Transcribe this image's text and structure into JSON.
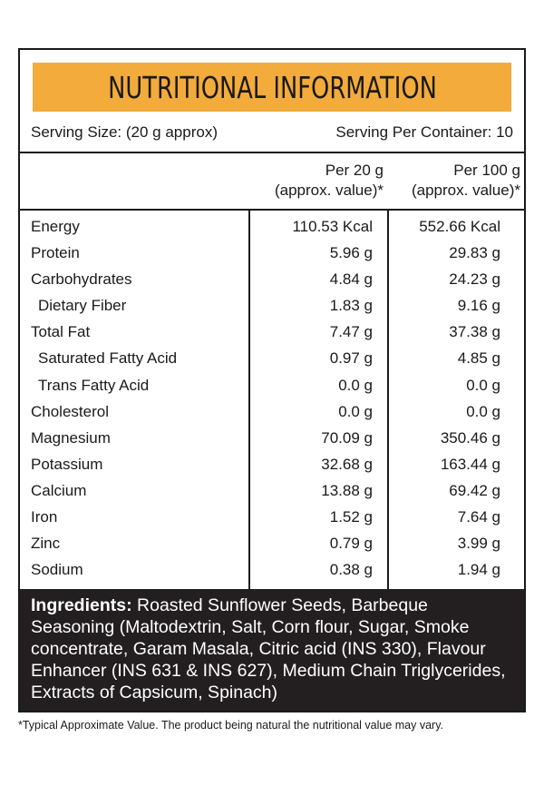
{
  "title": "NUTRITIONAL INFORMATION",
  "serving": {
    "size": "Serving Size: (20 g approx)",
    "per_container": "Serving Per Container: 10"
  },
  "columns": {
    "col1_line1": "Per 20 g",
    "col1_line2": "(approx. value)*",
    "col2_line1": "Per 100 g",
    "col2_line2": "(approx. value)*"
  },
  "nutrients": [
    {
      "name": "Energy",
      "per_serving": "110.53 Kcal",
      "per_100g": "552.66 Kcal"
    },
    {
      "name": "Protein",
      "per_serving": "5.96 g",
      "per_100g": "29.83 g"
    },
    {
      "name": "Carbohydrates",
      "per_serving": "4.84 g",
      "per_100g": "24.23 g"
    },
    {
      "name": "Dietary Fiber",
      "per_serving": "1.83 g",
      "per_100g": "9.16 g"
    },
    {
      "name": "Total Fat",
      "per_serving": "7.47 g",
      "per_100g": "37.38 g"
    },
    {
      "name": "Saturated Fatty Acid",
      "per_serving": "0.97 g",
      "per_100g": "4.85 g"
    },
    {
      "name": "Trans Fatty Acid",
      "per_serving": "0.0 g",
      "per_100g": "0.0 g"
    },
    {
      "name": "Cholesterol",
      "per_serving": "0.0 g",
      "per_100g": "0.0 g"
    },
    {
      "name": "Magnesium",
      "per_serving": "70.09 g",
      "per_100g": "350.46 g"
    },
    {
      "name": "Potassium",
      "per_serving": "32.68 g",
      "per_100g": "163.44 g"
    },
    {
      "name": "Calcium",
      "per_serving": "13.88 g",
      "per_100g": "69.42 g"
    },
    {
      "name": "Iron",
      "per_serving": "1.52 g",
      "per_100g": "7.64 g"
    },
    {
      "name": "Zinc",
      "per_serving": "0.79 g",
      "per_100g": "3.99 g"
    },
    {
      "name": "Sodium",
      "per_serving": "0.38 g",
      "per_100g": "1.94 g"
    }
  ],
  "ingredients": {
    "label": "Ingredients:",
    "text": " Roasted Sunflower Seeds, Barbeque Seasoning (Maltodextrin, Salt, Corn flour, Sugar, Smoke concentrate, Garam Masala, Citric acid (INS 330), Flavour Enhancer (INS 631 & INS 627),  Medium Chain Triglycerides, Extracts of Capsicum, Spinach)"
  },
  "footnote": "*Typical Approximate Value. The product being natural the nutritional value may vary.",
  "colors": {
    "title_bar": "#f3ab3c",
    "ingredients_bg": "#231f20",
    "border": "#1a1a1a"
  }
}
